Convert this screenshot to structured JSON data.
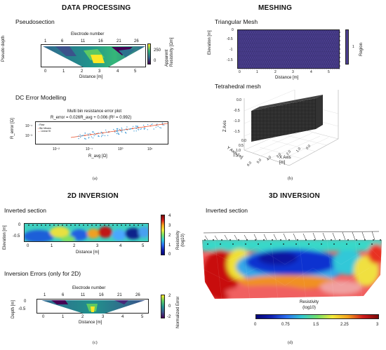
{
  "panels": {
    "a": {
      "heading": "DATA PROCESSING",
      "pseudosection": {
        "title": "Pseudosection",
        "top_axis_label": "Electrode number",
        "top_ticks": [
          "1",
          "6",
          "11",
          "16",
          "21",
          "26"
        ],
        "y_label": "Pseudo depth",
        "x_label": "Distance [m]",
        "x_ticks": [
          "0",
          "1",
          "2",
          "3",
          "4",
          "5"
        ],
        "colorbar_ticks": [
          "250",
          "0"
        ],
        "colorbar_label_1": "Apparent",
        "colorbar_label_2": "Resistivity [Ωm]",
        "colors": [
          "#440154",
          "#31688e",
          "#35b779",
          "#fde725"
        ]
      },
      "dc_error": {
        "title": "DC Error Modelling",
        "plot_title": "Multi bin resistance error plot",
        "equation": "R_error = 0.026R_avg + 0.006 (R² = 0.992)",
        "legend": [
          "Raw",
          "Bin Means",
          "Linear fit"
        ],
        "y_label": "R_error [Ω]",
        "y_ticks": [
          "10⁻¹",
          "10⁻³"
        ],
        "x_ticks": [
          "10⁻²",
          "10⁻¹",
          "10⁰",
          "10¹"
        ],
        "x_label": "R_avg [Ω]"
      },
      "caption": "(a)"
    },
    "b": {
      "heading": "MESHING",
      "triangular": {
        "title": "Triangular Mesh",
        "y_label": "Elevation [m]",
        "y_ticks": [
          "0",
          "-0.5",
          "-1",
          "-1.5"
        ],
        "x_ticks": [
          "0",
          "1",
          "2",
          "3",
          "4",
          "5"
        ],
        "x_label": "Distance [m]",
        "colorbar_tick": "1",
        "colorbar_label": "Region",
        "color": "#4b3f8f"
      },
      "tetrahedral": {
        "title": "Tetrahedral mesh",
        "z_label": "Z Axis",
        "z_ticks": [
          "0.0",
          "-0.5",
          "-1.0",
          "-1.5"
        ],
        "y_label": "Y Axis [m]",
        "y_ticks": [
          "0.0",
          "0.5",
          "1.0",
          "1.5"
        ],
        "x_label": "X Axis [m]",
        "x_ticks": [
          "6.0",
          "5.0",
          "4.0",
          "3.0",
          "2.0",
          "1.0",
          "0.0"
        ]
      },
      "caption": "(b)"
    },
    "c": {
      "heading": "2D INVERSION",
      "inverted": {
        "title": "Inverted section",
        "y_label": "Elevation [m]",
        "y_ticks": [
          "0",
          "-0.5"
        ],
        "x_ticks": [
          "0",
          "1",
          "2",
          "3",
          "4",
          "5"
        ],
        "x_label": "Distance [m]",
        "colorbar_ticks": [
          "4",
          "3",
          "2",
          "1",
          "0"
        ],
        "colorbar_label_1": "Resistivity",
        "colorbar_label_2": "(log10)"
      },
      "errors": {
        "title": "Inversion Errors (only for 2D)",
        "top_axis_label": "Electrode number",
        "top_ticks": [
          "1",
          "6",
          "11",
          "16",
          "21",
          "26"
        ],
        "y_label": "Depth [m]",
        "y_ticks": [
          "0",
          "-0.5"
        ],
        "x_ticks": [
          "0",
          "1",
          "2",
          "3",
          "4",
          "5"
        ],
        "x_label": "Distance [m]",
        "colorbar_ticks": [
          "2",
          "0",
          "-2"
        ],
        "colorbar_label": "Normalized Error"
      },
      "caption": "(c)"
    },
    "d": {
      "heading": "3D INVERSION",
      "inverted": {
        "title": "Inverted section",
        "colorbar_label_1": "Resistivity",
        "colorbar_label_2": "(log10)",
        "colorbar_ticks": [
          "0",
          "0.75",
          "1.5",
          "2.25",
          "3"
        ]
      },
      "caption": "(d)"
    }
  }
}
